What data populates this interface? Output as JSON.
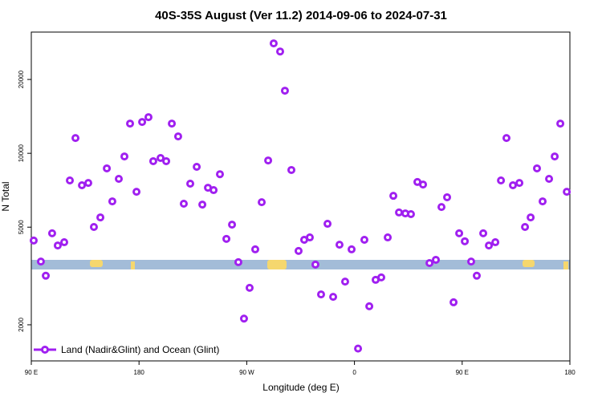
{
  "chart_data": {
    "type": "scatter",
    "title": "40S-35S August (Ver 11.2)   2014-09-06 to 2024-07-31",
    "x_label": "Longitude (deg E)",
    "y_label": "N Total",
    "log_y": true,
    "color": "#a020f0",
    "xlim": [
      90,
      540
    ],
    "xticks": [
      {
        "value": 90,
        "label": "90 E"
      },
      180,
      {
        "value": 270,
        "label": "90 W"
      },
      {
        "value": 360,
        "label": "0"
      },
      {
        "value": 450,
        "label": "90 E"
      },
      {
        "value": 540,
        "label": "180"
      }
    ],
    "ylim": [
      1425,
      31200
    ],
    "yticks": [
      2000,
      5000,
      10000,
      20000
    ],
    "legend_position": "bottom-left",
    "series": [
      {
        "name": "Land (Nadir&Glint) and Ocean (Glint)",
        "color": "#a020f0",
        "x": [
          92.0,
          98.0,
          102.1,
          107.4,
          112.1,
          117.5,
          122.2,
          126.9,
          132.3,
          137.6,
          142.3,
          147.7,
          153.1,
          157.7,
          163.1,
          167.8,
          172.5,
          177.9,
          182.6,
          187.9,
          191.9,
          198.0,
          202.7,
          207.4,
          212.7,
          217.4,
          222.8,
          228.2,
          232.9,
          237.6,
          242.3,
          247.6,
          253.0,
          257.7,
          263.0,
          267.7,
          272.4,
          277.1,
          282.5,
          287.9,
          292.5,
          297.9,
          301.9,
          307.3,
          313.3,
          318.0,
          322.7,
          327.4,
          332.1,
          337.5,
          342.2,
          347.5,
          352.2,
          357.6,
          363.0,
          368.3,
          372.4,
          377.7,
          382.4,
          387.8,
          392.5,
          397.2,
          402.5,
          407.2,
          412.6,
          417.3,
          422.7,
          428.0,
          432.7,
          437.4,
          442.8,
          447.5,
          452.2,
          457.5,
          462.2,
          467.6,
          472.3,
          477.7,
          482.4,
          487.0,
          492.4,
          497.8,
          502.5,
          507.2,
          512.5,
          517.2,
          522.6,
          527.3,
          532.0,
          537.4
        ],
        "values": [
          4410,
          3620,
          3170,
          4720,
          4210,
          4340,
          7750,
          11540,
          7410,
          7570,
          5010,
          5480,
          8680,
          6370,
          7870,
          9710,
          13220,
          6970,
          13420,
          14040,
          9290,
          9570,
          9290,
          13220,
          11720,
          6230,
          7520,
          8810,
          6180,
          7240,
          7080,
          8220,
          4480,
          5120,
          3600,
          2120,
          2830,
          4060,
          6320,
          9350,
          28060,
          26000,
          18000,
          8550,
          4000,
          4440,
          4540,
          3520,
          2660,
          5160,
          2600,
          4240,
          3000,
          4060,
          1600,
          4440,
          2380,
          3050,
          3120,
          4540,
          6710,
          5740,
          5690,
          5650,
          7640,
          7460,
          3570,
          3680,
          6040,
          6620,
          2470,
          4720,
          4380,
          3620,
          3170,
          4720,
          4210,
          4340,
          7750,
          11540,
          7410,
          7570,
          5010,
          5480,
          8680,
          6370,
          7870,
          9710,
          13220,
          6970
        ]
      }
    ]
  }
}
